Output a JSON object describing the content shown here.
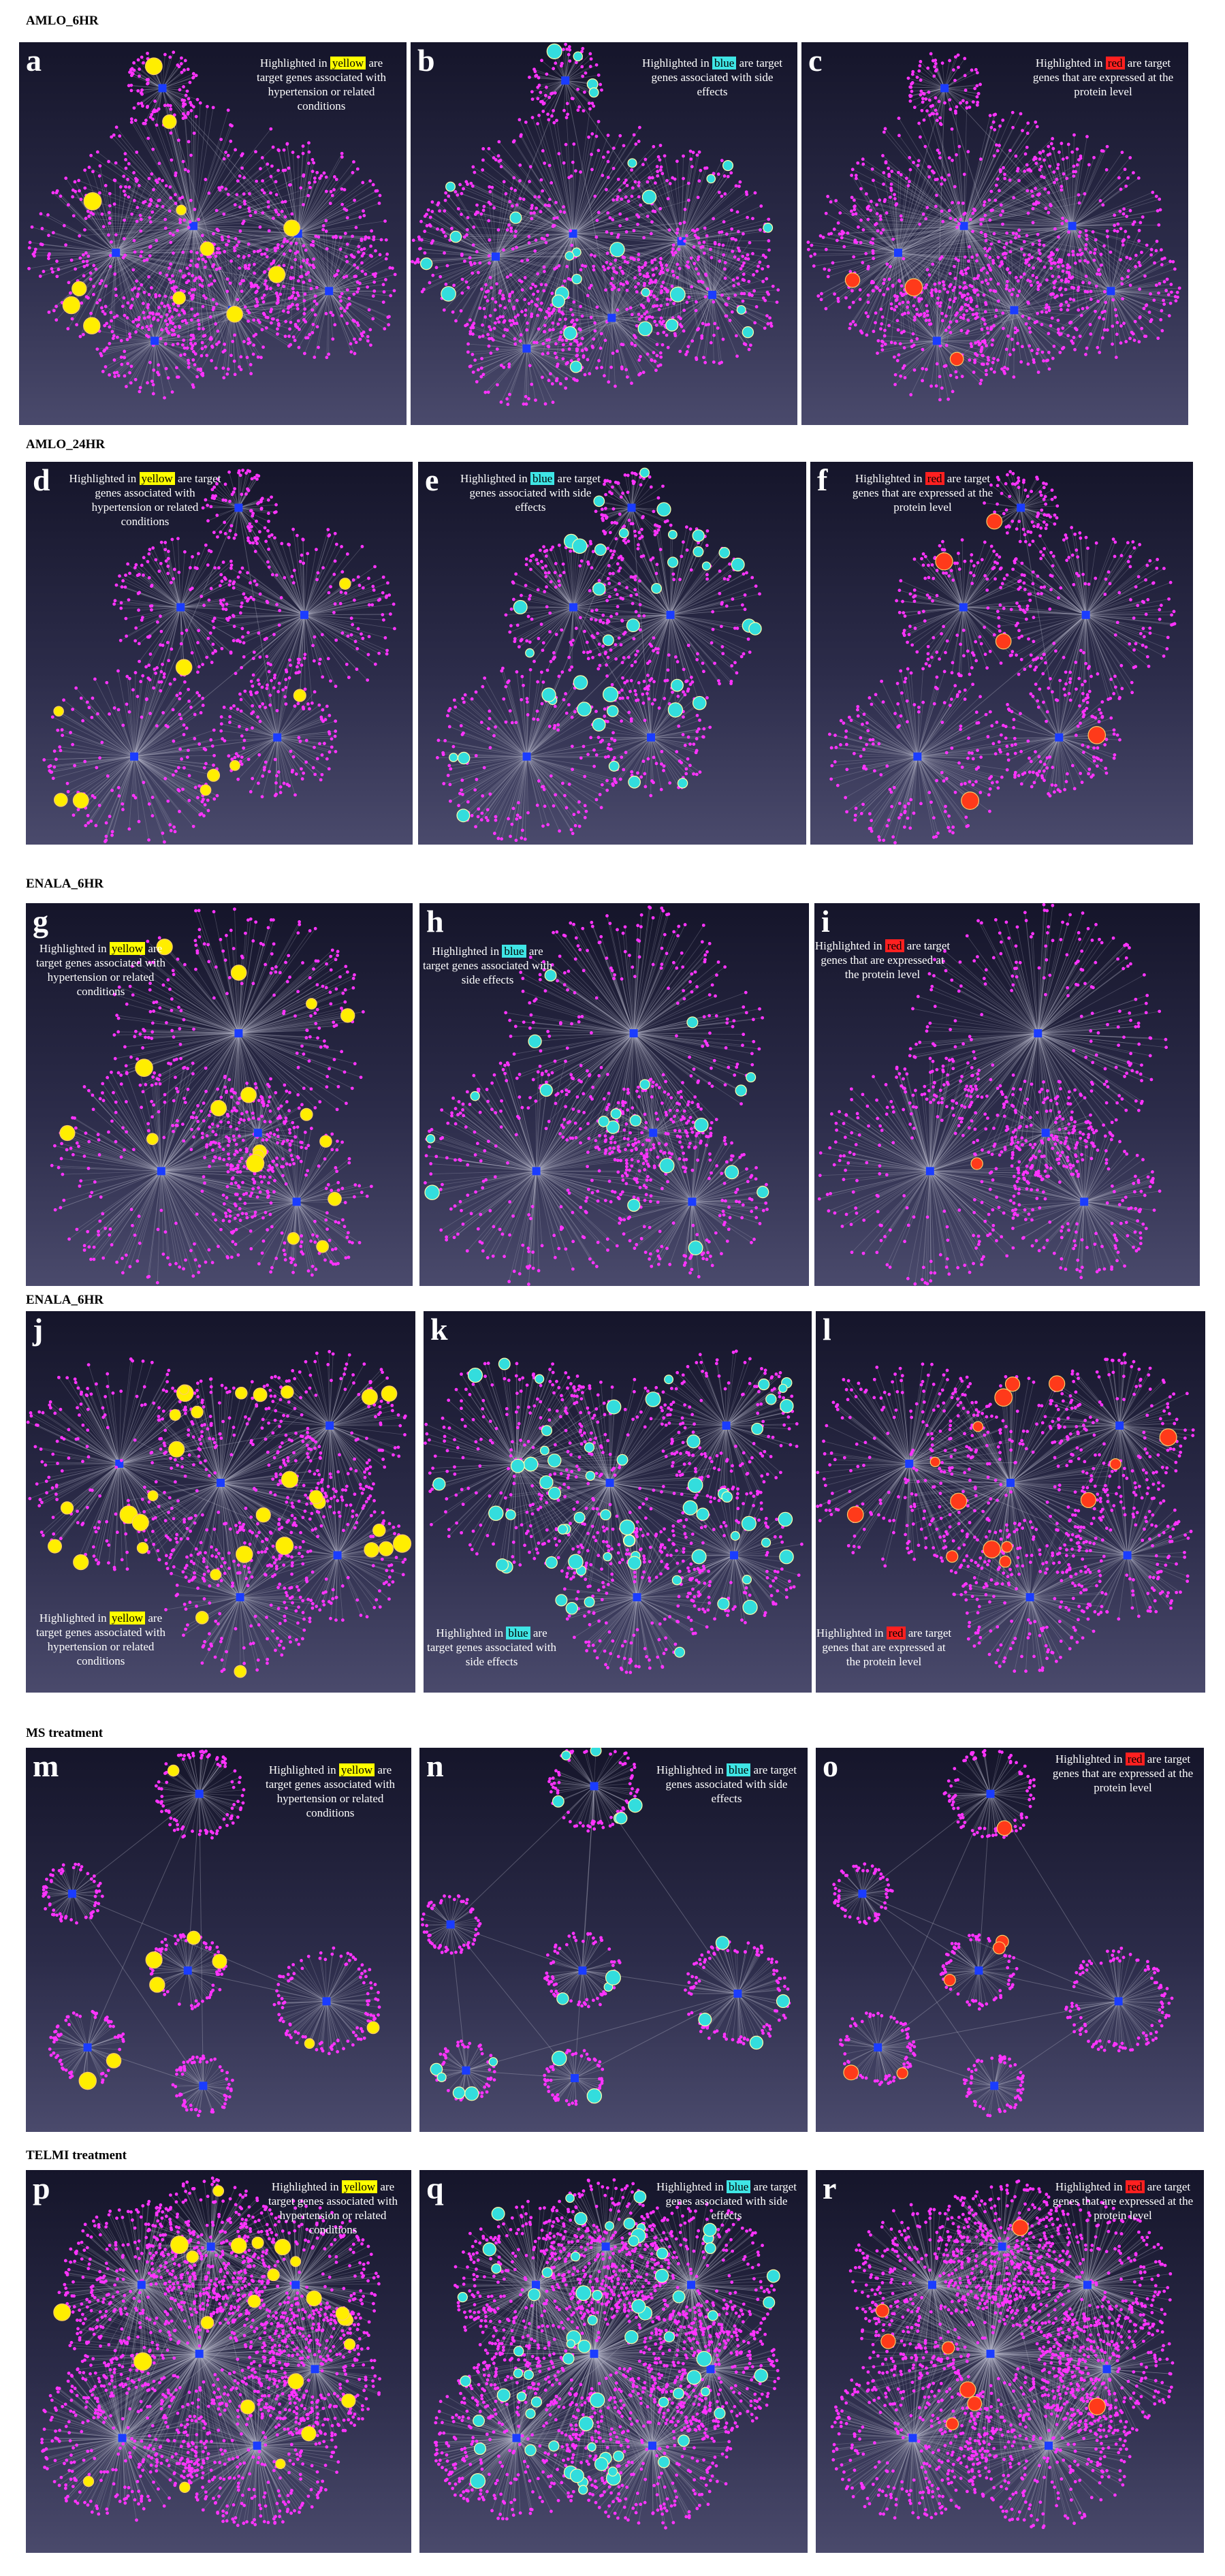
{
  "colors": {
    "node": "#ff33ff",
    "edge": "#b8b8c8",
    "hub": "#1a3cff",
    "yellow": "#ffee00",
    "cyan": "#33dddd",
    "red": "#ff3a1a"
  },
  "sections": [
    {
      "title": "AMLO_6HR"
    },
    {
      "title": "AMLO_24HR"
    },
    {
      "title": "ENALA_6HR"
    },
    {
      "title": "ENALA_6HR"
    },
    {
      "title": "MS treatment"
    },
    {
      "title": "TELMI treatment"
    }
  ],
  "captions": {
    "yellow": {
      "pre": "Highlighted in ",
      "word": "yellow",
      "post": " are target genes associated with hypertension or related conditions"
    },
    "blue": {
      "pre": "Highlighted in ",
      "word": "blue",
      "post": " are target genes associated with side effects"
    },
    "red": {
      "pre": "Highlighted in ",
      "word": "red",
      "post": " are target genes that are expressed at the protein level"
    }
  },
  "panels": [
    {
      "letter": "a"
    },
    {
      "letter": "b"
    },
    {
      "letter": "c"
    },
    {
      "letter": "d"
    },
    {
      "letter": "e"
    },
    {
      "letter": "f"
    },
    {
      "letter": "g"
    },
    {
      "letter": "h"
    },
    {
      "letter": "i"
    },
    {
      "letter": "j"
    },
    {
      "letter": "k"
    },
    {
      "letter": "l"
    },
    {
      "letter": "m"
    },
    {
      "letter": "n"
    },
    {
      "letter": "o"
    },
    {
      "letter": "p"
    },
    {
      "letter": "q"
    },
    {
      "letter": "r"
    }
  ]
}
